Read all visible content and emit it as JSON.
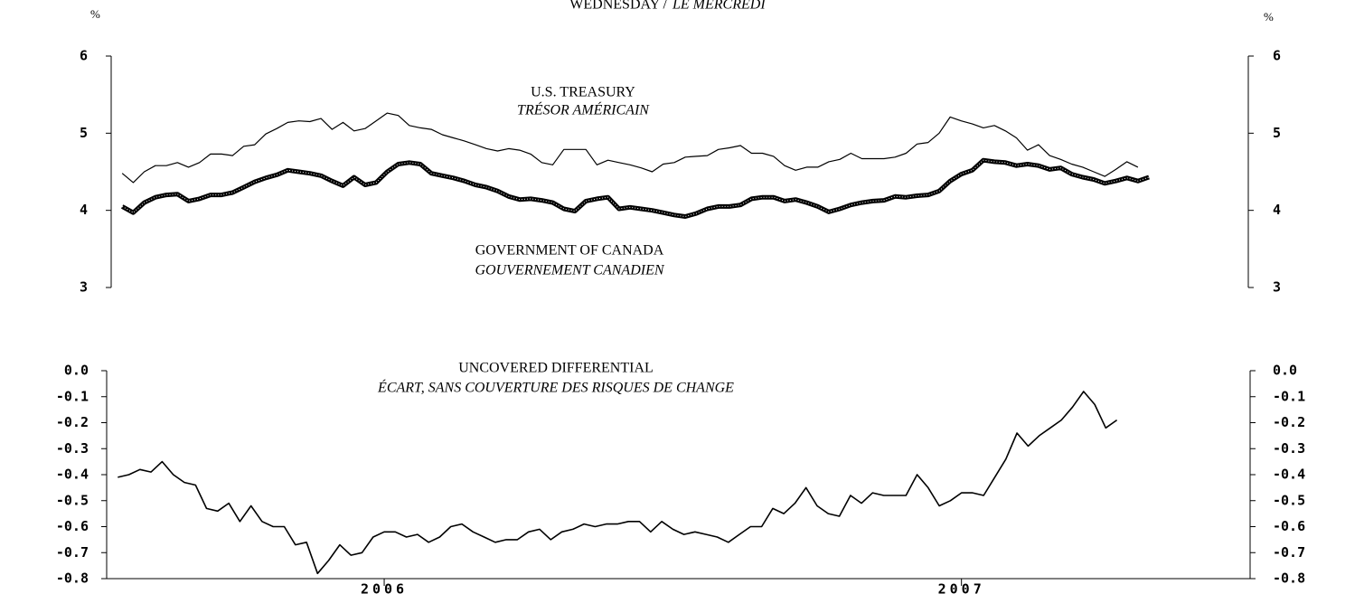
{
  "chart_data": [
    {
      "type": "line",
      "title": "WEDNESDAY /",
      "title_fr": "LE MERCREDI",
      "ylabel": "%",
      "xlim": [
        0,
        103
      ],
      "ylim": [
        3,
        6
      ],
      "yticks": [
        3,
        4,
        5,
        6
      ],
      "series": [
        {
          "name": "U.S. TREASURY",
          "name_fr": "TRÉSOR AMÉRICAIN",
          "color": "#000000",
          "style": "thin",
          "values": [
            4.48,
            4.36,
            4.5,
            4.58,
            4.58,
            4.62,
            4.56,
            4.62,
            4.73,
            4.73,
            4.71,
            4.83,
            4.85,
            4.99,
            5.06,
            5.14,
            5.16,
            5.15,
            5.19,
            5.05,
            5.14,
            5.03,
            5.06,
            5.16,
            5.26,
            5.23,
            5.1,
            5.07,
            5.05,
            4.98,
            4.94,
            4.9,
            4.85,
            4.8,
            4.77,
            4.8,
            4.78,
            4.73,
            4.62,
            4.59,
            4.79,
            4.79,
            4.79,
            4.59,
            4.65,
            4.62,
            4.59,
            4.55,
            4.5,
            4.6,
            4.62,
            4.69,
            4.7,
            4.71,
            4.79,
            4.81,
            4.84,
            4.74,
            4.74,
            4.7,
            4.58,
            4.52,
            4.56,
            4.56,
            4.63,
            4.66,
            4.74,
            4.67,
            4.67,
            4.67,
            4.69,
            4.74,
            4.86,
            4.88,
            5.0,
            5.21,
            5.16,
            5.12,
            5.07,
            5.1,
            5.03,
            4.94,
            4.78,
            4.85,
            4.71,
            4.66,
            4.6,
            4.56,
            4.5,
            4.44,
            4.53,
            4.63,
            4.56
          ]
        },
        {
          "name": "GOVERNMENT OF CANADA",
          "name_fr": "GOUVERNEMENT CANADIEN",
          "color": "#000000",
          "style": "thick",
          "values": [
            4.05,
            3.97,
            4.1,
            4.17,
            4.2,
            4.21,
            4.12,
            4.15,
            4.2,
            4.2,
            4.23,
            4.3,
            4.37,
            4.42,
            4.46,
            4.52,
            4.5,
            4.48,
            4.45,
            4.38,
            4.32,
            4.43,
            4.33,
            4.36,
            4.5,
            4.6,
            4.62,
            4.6,
            4.48,
            4.45,
            4.42,
            4.38,
            4.33,
            4.3,
            4.25,
            4.18,
            4.14,
            4.15,
            4.13,
            4.1,
            4.02,
            3.99,
            4.12,
            4.15,
            4.17,
            4.02,
            4.04,
            4.02,
            4.0,
            3.97,
            3.94,
            3.92,
            3.96,
            4.02,
            4.05,
            4.05,
            4.07,
            4.15,
            4.17,
            4.17,
            4.12,
            4.14,
            4.1,
            4.05,
            3.98,
            4.02,
            4.07,
            4.1,
            4.12,
            4.13,
            4.18,
            4.17,
            4.19,
            4.2,
            4.25,
            4.38,
            4.47,
            4.52,
            4.65,
            4.63,
            4.62,
            4.58,
            4.6,
            4.58,
            4.53,
            4.55,
            4.47,
            4.43,
            4.4,
            4.35,
            4.38,
            4.42,
            4.38,
            4.43
          ]
        }
      ]
    },
    {
      "type": "line",
      "title": "UNCOVERED DIFFERENTIAL",
      "title_fr": "ÉCART, SANS COUVERTURE DES RISQUES DE CHANGE",
      "xlim": [
        0,
        103
      ],
      "xticks": [
        {
          "value": 25,
          "label": "2006"
        },
        {
          "value": 77,
          "label": "2007"
        }
      ],
      "ylim": [
        -0.8,
        0
      ],
      "yticks": [
        -0.8,
        -0.7,
        -0.6,
        -0.5,
        -0.4,
        -0.3,
        -0.2,
        -0.1,
        {
          "value": 0,
          "label": "0.0"
        }
      ],
      "series": [
        {
          "color": "#000000",
          "style": "medium",
          "values": [
            -0.41,
            -0.4,
            -0.38,
            -0.39,
            -0.35,
            -0.4,
            -0.43,
            -0.44,
            -0.53,
            -0.54,
            -0.51,
            -0.58,
            -0.52,
            -0.58,
            -0.6,
            -0.6,
            -0.67,
            -0.66,
            -0.78,
            -0.73,
            -0.67,
            -0.71,
            -0.7,
            -0.64,
            -0.62,
            -0.62,
            -0.64,
            -0.63,
            -0.66,
            -0.64,
            -0.6,
            -0.59,
            -0.62,
            -0.64,
            -0.66,
            -0.65,
            -0.65,
            -0.62,
            -0.61,
            -0.65,
            -0.62,
            -0.61,
            -0.59,
            -0.6,
            -0.59,
            -0.59,
            -0.58,
            -0.58,
            -0.62,
            -0.58,
            -0.61,
            -0.63,
            -0.62,
            -0.63,
            -0.64,
            -0.66,
            -0.63,
            -0.6,
            -0.6,
            -0.53,
            -0.55,
            -0.51,
            -0.45,
            -0.52,
            -0.55,
            -0.56,
            -0.48,
            -0.51,
            -0.47,
            -0.48,
            -0.48,
            -0.48,
            -0.4,
            -0.45,
            -0.52,
            -0.5,
            -0.47,
            -0.47,
            -0.48,
            -0.41,
            -0.34,
            -0.24,
            -0.29,
            -0.25,
            -0.22,
            -0.19,
            -0.14,
            -0.08,
            -0.13,
            -0.22,
            -0.19
          ]
        }
      ]
    }
  ]
}
